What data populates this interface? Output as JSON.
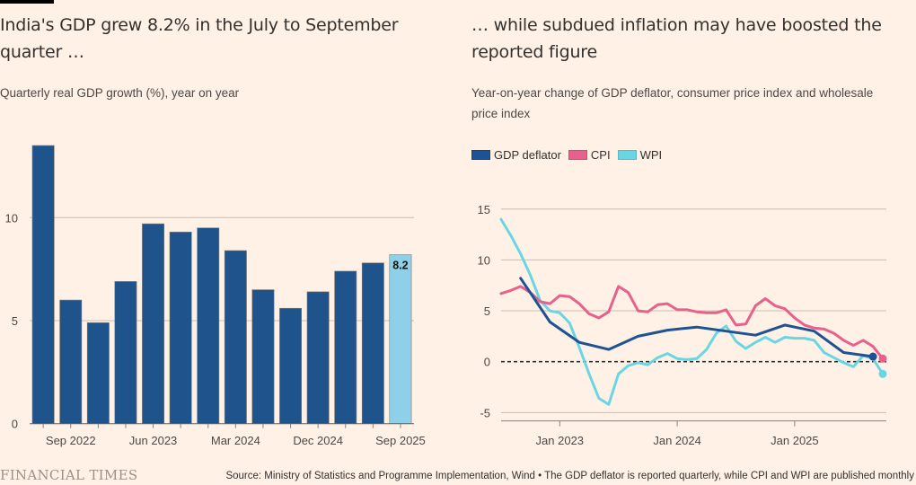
{
  "left": {
    "title": "India's GDP grew 8.2% in the July to September quarter …",
    "subtitle": "Quarterly real GDP growth (%), year on year"
  },
  "right": {
    "title": "… while subdued inflation may have boosted the reported figure",
    "subtitle": "Year-on-year change of GDP deflator, consumer price index and wholesale price index",
    "legend": [
      {
        "label": "GDP deflator",
        "color": "#1d5294"
      },
      {
        "label": "CPI",
        "color": "#e8608c"
      },
      {
        "label": "WPI",
        "color": "#6ad6e4"
      }
    ]
  },
  "footer": {
    "brand": "FINANCIAL TIMES",
    "source": "Source: Ministry of Statistics and Programme Implementation, Wind • The GDP deflator is reported quarterly, while CPI and WPI are published monthly"
  },
  "chart_data": [
    {
      "type": "bar",
      "title": "India's GDP grew 8.2% in the July to September quarter …",
      "subtitle": "Quarterly real GDP growth (%), year on year",
      "xlabel": "",
      "ylabel": "",
      "categories": [
        "Jun 2022",
        "Sep 2022",
        "Dec 2022",
        "Mar 2023",
        "Jun 2023",
        "Sep 2023",
        "Dec 2023",
        "Mar 2024",
        "Jun 2024",
        "Sep 2024",
        "Dec 2024",
        "Mar 2025",
        "Jun 2025",
        "Sep 2025"
      ],
      "values": [
        13.5,
        6.0,
        4.9,
        6.9,
        9.7,
        9.3,
        9.5,
        8.4,
        6.5,
        5.6,
        6.4,
        7.4,
        7.8,
        8.2
      ],
      "highlight_index": 13,
      "highlight_label": "8.2",
      "bar_color": "#1f538c",
      "highlight_color": "#8ed0e8",
      "ylim": [
        0,
        13.5
      ],
      "yticks": [
        0,
        5,
        10
      ],
      "xtick_labels": [
        {
          "index": 1,
          "label": "Sep 2022"
        },
        {
          "index": 4,
          "label": "Jun 2023"
        },
        {
          "index": 7,
          "label": "Mar 2024"
        },
        {
          "index": 10,
          "label": "Dec 2024"
        },
        {
          "index": 13,
          "label": "Sep 2025"
        }
      ],
      "grid": true
    },
    {
      "type": "line",
      "title": "… while subdued inflation may have boosted the reported figure",
      "subtitle": "Year-on-year change of GDP deflator, consumer price index and wholesale price index",
      "xlabel": "",
      "ylabel": "",
      "x_start": "Jul 2022",
      "x_end": "Oct 2025",
      "x_months": 40,
      "ylim": [
        -6,
        15
      ],
      "yticks": [
        -5,
        0,
        5,
        10,
        15
      ],
      "xticks": [
        {
          "month_index": 6,
          "label": "Jan 2023"
        },
        {
          "month_index": 18,
          "label": "Jan 2024"
        },
        {
          "month_index": 30,
          "label": "Jan 2025"
        }
      ],
      "legend_position": "top-left",
      "grid": true,
      "series": [
        {
          "name": "GDP deflator",
          "color": "#1d5294",
          "frequency": "quarterly",
          "month_indices": [
            2,
            5,
            8,
            11,
            14,
            17,
            20,
            23,
            26,
            29,
            32,
            35,
            38
          ],
          "x": [
            "Sep 2022",
            "Dec 2022",
            "Mar 2023",
            "Jun 2023",
            "Sep 2023",
            "Dec 2023",
            "Mar 2024",
            "Jun 2024",
            "Sep 2024",
            "Dec 2024",
            "Mar 2025",
            "Jun 2025",
            "Sep 2025"
          ],
          "values": [
            8.2,
            3.9,
            1.9,
            1.2,
            2.5,
            3.1,
            3.4,
            3.0,
            2.6,
            3.6,
            3.0,
            0.9,
            0.5
          ]
        },
        {
          "name": "CPI",
          "color": "#e8608c",
          "frequency": "monthly",
          "values": [
            6.7,
            7.0,
            7.4,
            6.8,
            5.9,
            5.7,
            6.5,
            6.4,
            5.7,
            4.7,
            4.3,
            4.9,
            7.4,
            6.8,
            5.0,
            4.9,
            5.6,
            5.7,
            5.1,
            5.1,
            4.9,
            4.8,
            4.8,
            5.1,
            3.6,
            3.7,
            5.5,
            6.2,
            5.5,
            5.2,
            4.3,
            3.6,
            3.3,
            3.2,
            2.8,
            2.1,
            1.6,
            2.1,
            1.5,
            0.3
          ]
        },
        {
          "name": "WPI",
          "color": "#6ad6e4",
          "frequency": "monthly",
          "values": [
            14.0,
            12.4,
            10.6,
            8.5,
            6.0,
            5.0,
            4.8,
            3.8,
            1.4,
            -1.2,
            -3.6,
            -4.2,
            -1.2,
            -0.4,
            -0.1,
            -0.3,
            0.4,
            0.8,
            0.3,
            0.2,
            0.3,
            1.2,
            2.8,
            3.5,
            2.0,
            1.3,
            1.9,
            2.4,
            1.9,
            2.4,
            2.3,
            2.3,
            2.1,
            0.9,
            0.4,
            -0.1,
            -0.5,
            0.6,
            0.3,
            -1.2
          ]
        }
      ]
    }
  ]
}
